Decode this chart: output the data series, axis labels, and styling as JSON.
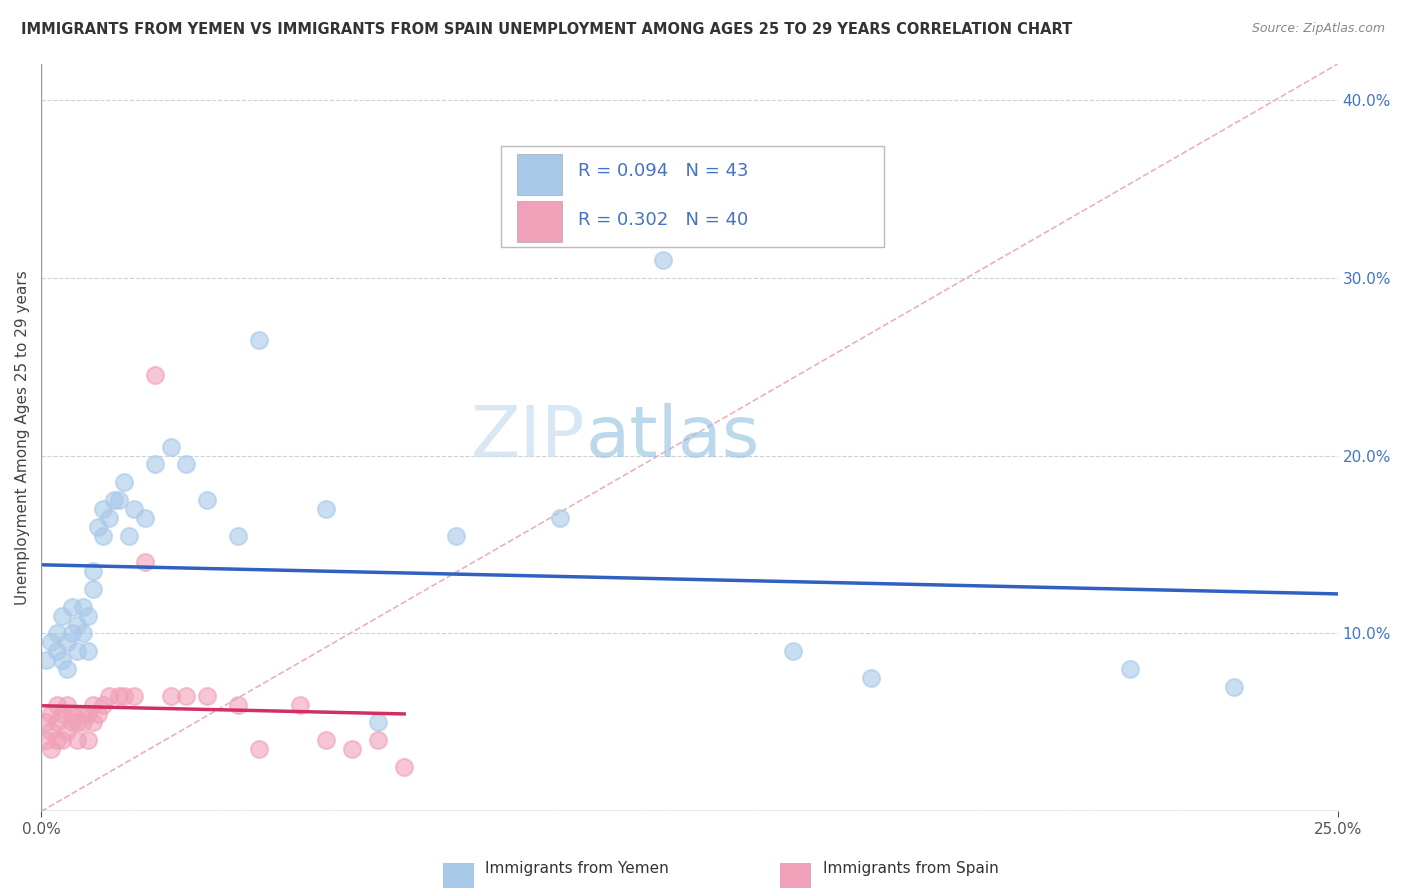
{
  "title": "IMMIGRANTS FROM YEMEN VS IMMIGRANTS FROM SPAIN UNEMPLOYMENT AMONG AGES 25 TO 29 YEARS CORRELATION CHART",
  "source": "Source: ZipAtlas.com",
  "ylabel": "Unemployment Among Ages 25 to 29 years",
  "xlabel_legend1": "Immigrants from Yemen",
  "xlabel_legend2": "Immigrants from Spain",
  "R_yemen": 0.094,
  "N_yemen": 43,
  "R_spain": 0.302,
  "N_spain": 40,
  "xlim": [
    0.0,
    0.25
  ],
  "ylim": [
    0.0,
    0.42
  ],
  "color_yemen": "#a8c8e8",
  "color_spain": "#f0a0b8",
  "trend_color_yemen": "#3060c0",
  "trend_color_spain": "#d03060",
  "watermark_zip": "ZIP",
  "watermark_atlas": "atlas",
  "background_color": "#ffffff",
  "grid_color": "#d0d0d0",
  "yticks_right": [
    0.0,
    0.1,
    0.2,
    0.3,
    0.4
  ],
  "ytick_labels_right": [
    "",
    "10.0%",
    "20.0%",
    "30.0%",
    "40.0%"
  ],
  "yemen_x": [
    0.001,
    0.002,
    0.003,
    0.003,
    0.004,
    0.004,
    0.005,
    0.005,
    0.006,
    0.006,
    0.007,
    0.007,
    0.008,
    0.008,
    0.009,
    0.009,
    0.01,
    0.01,
    0.011,
    0.012,
    0.012,
    0.013,
    0.014,
    0.015,
    0.016,
    0.017,
    0.018,
    0.02,
    0.022,
    0.025,
    0.028,
    0.032,
    0.038,
    0.042,
    0.055,
    0.065,
    0.08,
    0.1,
    0.12,
    0.145,
    0.16,
    0.21,
    0.23
  ],
  "yemen_y": [
    0.085,
    0.095,
    0.09,
    0.1,
    0.085,
    0.11,
    0.08,
    0.095,
    0.1,
    0.115,
    0.09,
    0.105,
    0.1,
    0.115,
    0.09,
    0.11,
    0.125,
    0.135,
    0.16,
    0.17,
    0.155,
    0.165,
    0.175,
    0.175,
    0.185,
    0.155,
    0.17,
    0.165,
    0.195,
    0.205,
    0.195,
    0.175,
    0.155,
    0.265,
    0.17,
    0.05,
    0.155,
    0.165,
    0.31,
    0.09,
    0.075,
    0.08,
    0.07
  ],
  "spain_x": [
    0.001,
    0.001,
    0.002,
    0.002,
    0.002,
    0.003,
    0.003,
    0.003,
    0.004,
    0.004,
    0.005,
    0.005,
    0.006,
    0.006,
    0.007,
    0.007,
    0.008,
    0.008,
    0.009,
    0.009,
    0.01,
    0.01,
    0.011,
    0.012,
    0.013,
    0.015,
    0.016,
    0.018,
    0.02,
    0.022,
    0.025,
    0.028,
    0.032,
    0.038,
    0.042,
    0.05,
    0.055,
    0.06,
    0.065,
    0.07
  ],
  "spain_y": [
    0.04,
    0.05,
    0.035,
    0.045,
    0.055,
    0.04,
    0.05,
    0.06,
    0.04,
    0.055,
    0.045,
    0.06,
    0.05,
    0.055,
    0.04,
    0.05,
    0.05,
    0.055,
    0.04,
    0.055,
    0.05,
    0.06,
    0.055,
    0.06,
    0.065,
    0.065,
    0.065,
    0.065,
    0.14,
    0.245,
    0.065,
    0.065,
    0.065,
    0.06,
    0.035,
    0.06,
    0.04,
    0.035,
    0.04,
    0.025
  ]
}
